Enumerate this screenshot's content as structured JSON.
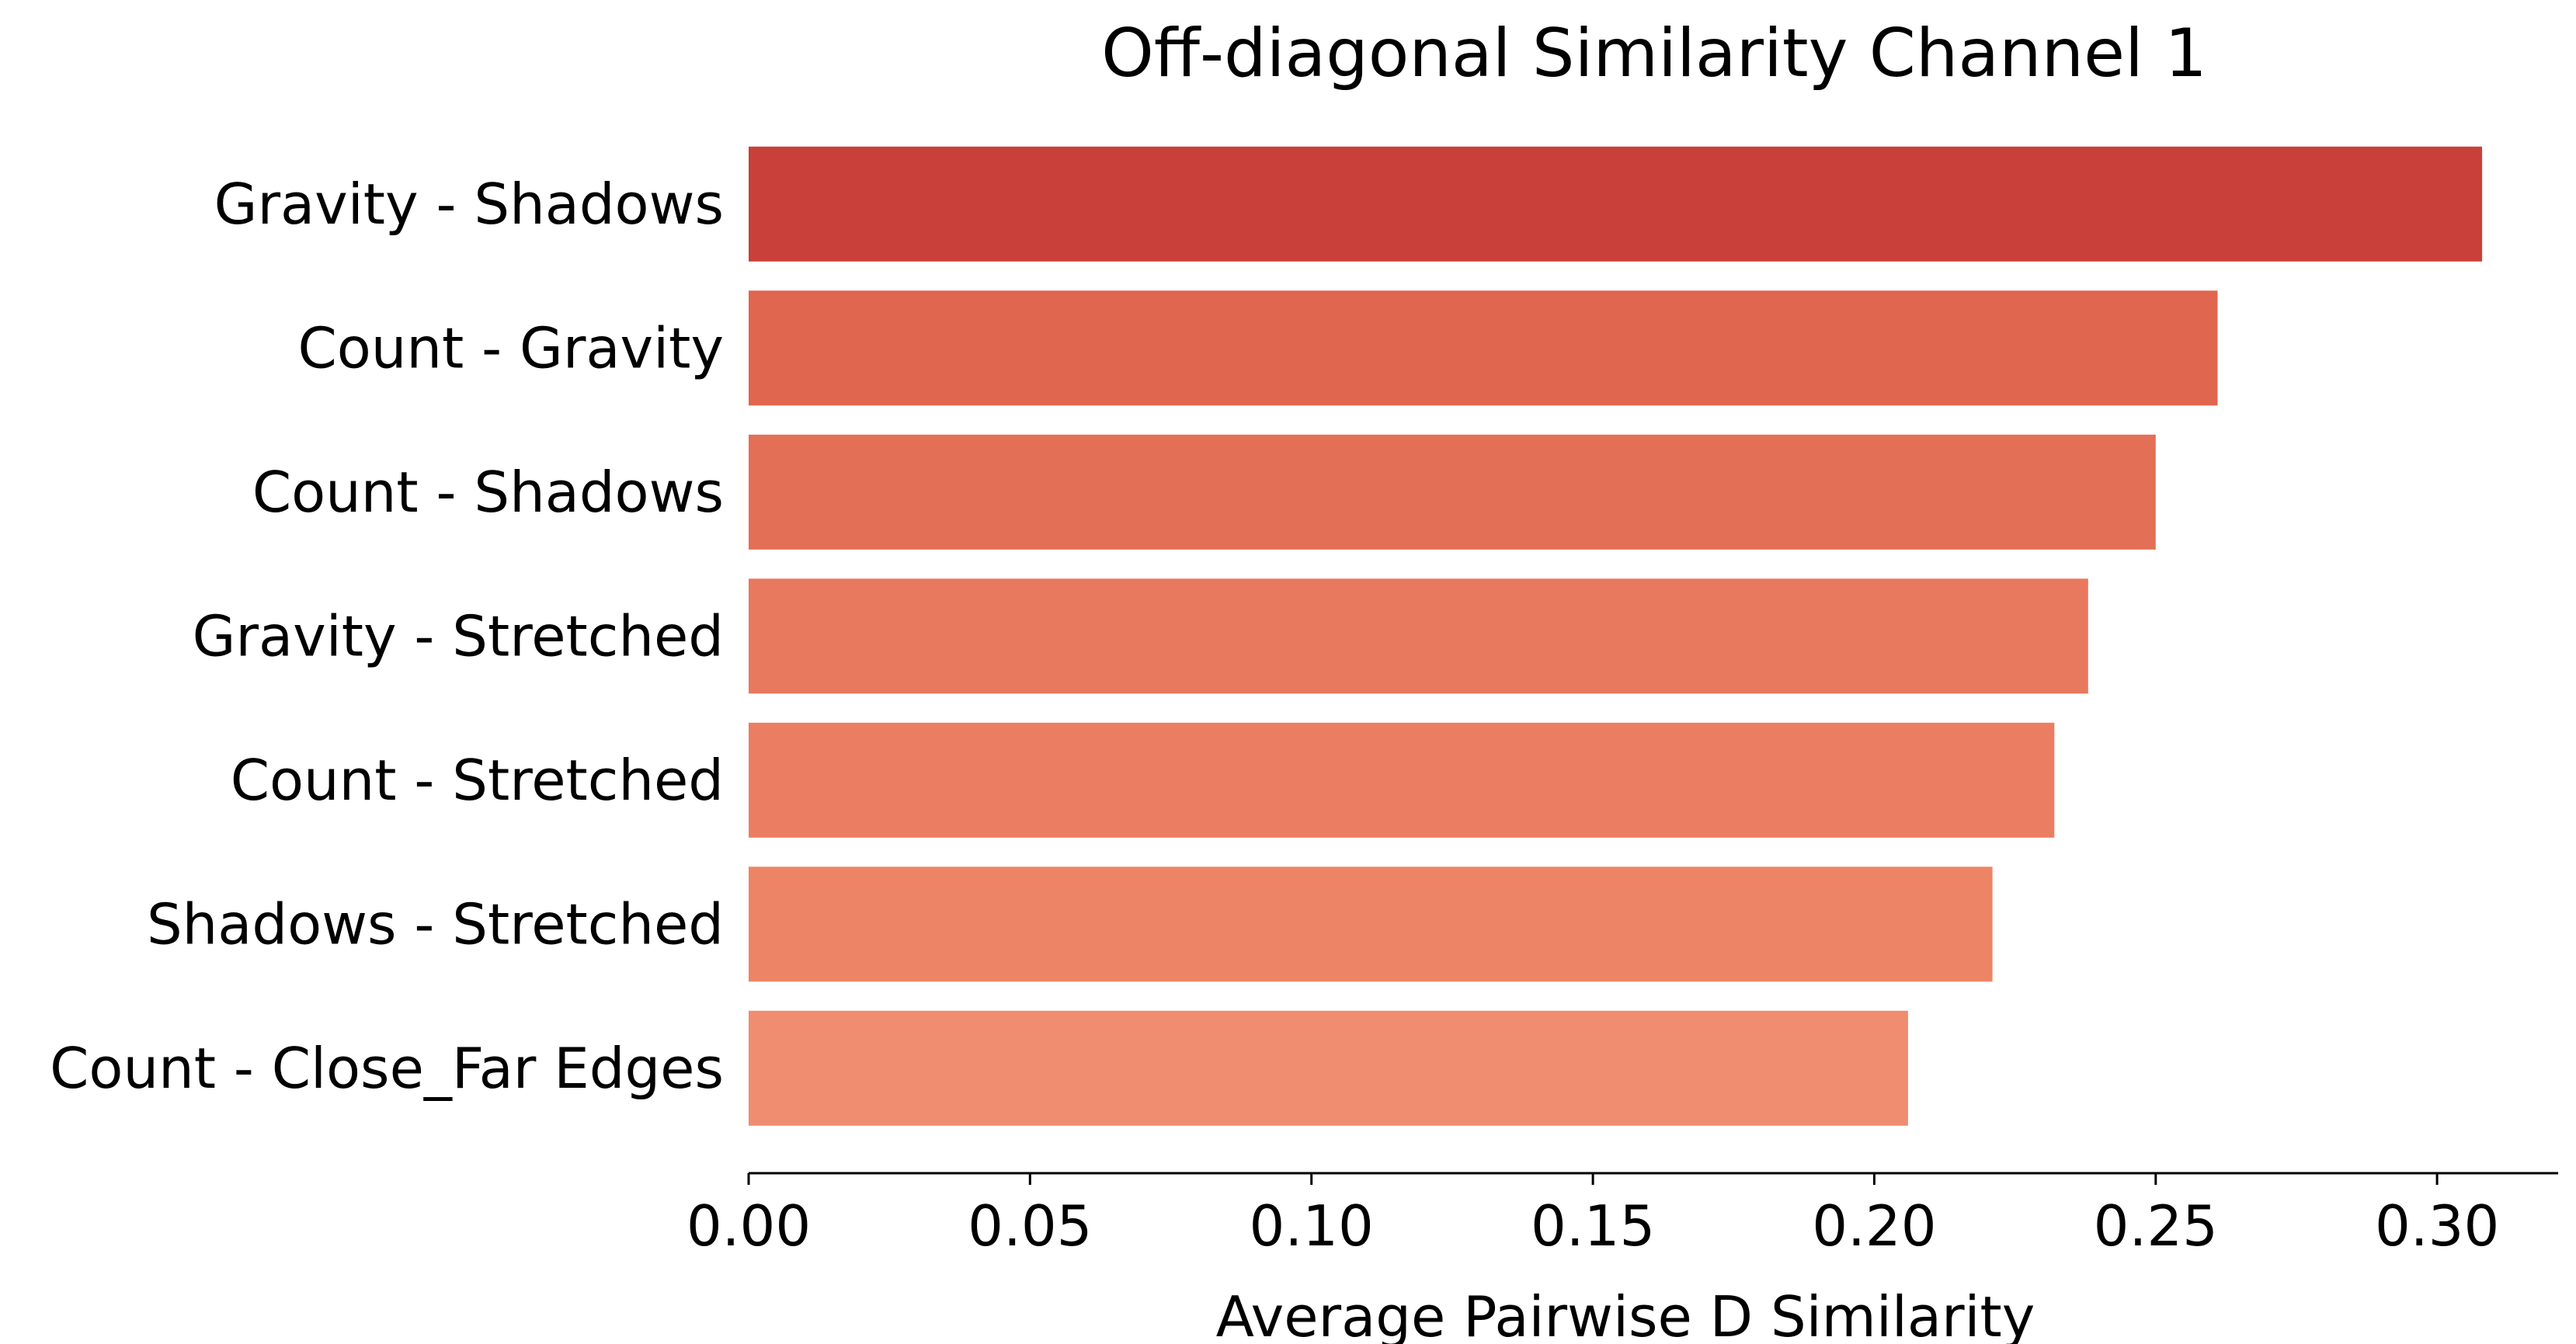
{
  "chart_data": {
    "type": "bar",
    "orientation": "horizontal",
    "title": "Off-diagonal Similarity Channel 1",
    "xlabel": "Average Pairwise D Similarity",
    "ylabel": "",
    "categories": [
      "Gravity - Shadows",
      "Count - Gravity",
      "Count - Shadows",
      "Gravity - Stretched",
      "Count - Stretched",
      "Shadows - Stretched",
      "Count - Close_Far Edges"
    ],
    "values": [
      0.308,
      0.261,
      0.25,
      0.238,
      0.232,
      0.221,
      0.206
    ],
    "colors": [
      "#c9403a",
      "#e0664f",
      "#e36f57",
      "#e8785e",
      "#eb7d62",
      "#ed8466",
      "#f08c70"
    ],
    "xlim": [
      0,
      0.323
    ],
    "xticks": [
      0.0,
      0.05,
      0.1,
      0.15,
      0.2,
      0.25,
      0.3
    ],
    "xtick_labels": [
      "0.00",
      "0.05",
      "0.10",
      "0.15",
      "0.20",
      "0.25",
      "0.30"
    ],
    "grid": false,
    "legend": "none"
  }
}
